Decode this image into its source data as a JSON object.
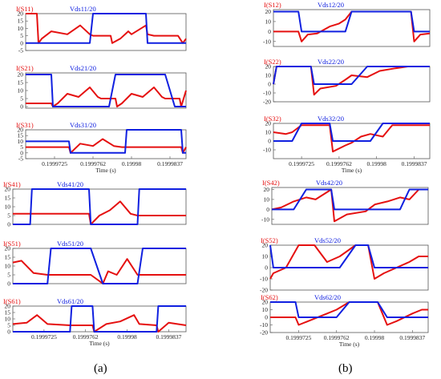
{
  "figure_labels": {
    "left": "(a)",
    "right": "(b)"
  },
  "chart_data": [
    {
      "type": "line",
      "group": "a",
      "xlabel": "",
      "x": [
        0,
        0.07,
        0.08,
        0.1,
        0.16,
        0.26,
        0.34,
        0.4,
        0.42,
        0.47,
        0.53,
        0.54,
        0.59,
        0.64,
        0.66,
        0.75,
        0.76,
        0.8,
        0.88,
        0.95,
        0.98,
        1
      ],
      "series": [
        {
          "name": "I(S11)",
          "values": [
            20,
            20,
            0,
            3,
            8,
            6,
            12,
            6,
            5,
            5,
            5,
            0,
            3,
            8,
            6,
            12,
            6,
            5,
            5,
            5,
            0,
            3
          ]
        },
        {
          "name": "Vds11/20",
          "values": [
            0,
            0,
            0,
            0,
            0,
            0,
            0,
            0,
            20,
            20,
            20,
            20,
            20,
            20,
            20,
            20,
            0,
            0,
            0,
            0,
            0,
            0
          ]
        }
      ],
      "xticks": [],
      "yticks": [
        -5,
        0,
        5,
        10,
        15,
        20
      ],
      "ylim": [
        -5,
        20
      ]
    },
    {
      "type": "line",
      "group": "a",
      "xlabel": "",
      "x": [
        0,
        0.16,
        0.17,
        0.2,
        0.26,
        0.33,
        0.4,
        0.45,
        0.47,
        0.52,
        0.56,
        0.57,
        0.6,
        0.66,
        0.73,
        0.8,
        0.85,
        0.87,
        0.93,
        0.96,
        0.97,
        1
      ],
      "series": [
        {
          "name": "I(S21)",
          "values": [
            2,
            2,
            0,
            2,
            8,
            6,
            12,
            6,
            5,
            5,
            5,
            0,
            2,
            8,
            6,
            12,
            6,
            5,
            5,
            5,
            0,
            10
          ]
        },
        {
          "name": "Vds21/20",
          "values": [
            20,
            20,
            0,
            0,
            0,
            0,
            0,
            0,
            0,
            0,
            20,
            20,
            20,
            20,
            20,
            20,
            20,
            20,
            0,
            0,
            0,
            0
          ]
        }
      ],
      "xticks": [],
      "yticks": [
        0,
        5,
        10,
        15,
        20
      ],
      "ylim": [
        -1,
        21
      ]
    },
    {
      "type": "line",
      "group": "a",
      "xlabel": "Time (s)",
      "x": [
        0,
        0.2,
        0.27,
        0.28,
        0.34,
        0.42,
        0.48,
        0.55,
        0.6,
        0.62,
        0.63,
        0.7,
        0.75,
        0.83,
        0.9,
        0.95,
        0.97,
        0.98,
        1
      ],
      "series": [
        {
          "name": "I(S31)",
          "values": [
            5,
            5,
            5,
            0,
            8,
            6,
            12,
            6,
            5,
            5,
            5,
            5,
            5,
            5,
            5,
            5,
            5,
            0,
            5
          ]
        },
        {
          "name": "Vds31/20",
          "values": [
            10,
            10,
            10,
            0,
            0,
            0,
            0,
            0,
            0,
            0,
            20,
            20,
            20,
            20,
            20,
            20,
            20,
            0,
            0
          ]
        }
      ],
      "xticks": [
        "0.1999725",
        "0.1999762",
        "0.19998",
        "0.1999837"
      ],
      "yticks": [
        -5,
        0,
        5,
        10,
        15,
        20
      ],
      "ylim": [
        -5,
        20
      ]
    },
    {
      "type": "line",
      "group": "a",
      "xlabel": "",
      "x": [
        0,
        0.05,
        0.1,
        0.11,
        0.3,
        0.44,
        0.45,
        0.5,
        0.56,
        0.62,
        0.68,
        0.72,
        0.73,
        0.78,
        0.9,
        1
      ],
      "series": [
        {
          "name": "I(S41)",
          "values": [
            6,
            6,
            6,
            6,
            6,
            6,
            0,
            5,
            8,
            13,
            6,
            5,
            5,
            5,
            5,
            5
          ]
        },
        {
          "name": "Vds41/20",
          "values": [
            0,
            0,
            0,
            20,
            20,
            20,
            0,
            0,
            0,
            0,
            0,
            0,
            20,
            20,
            20,
            20
          ]
        }
      ],
      "xticks": [],
      "yticks": [
        0,
        5,
        10,
        15,
        20
      ],
      "ylim": [
        0,
        20
      ]
    },
    {
      "type": "line",
      "group": "a",
      "xlabel": "",
      "x": [
        0,
        0.05,
        0.12,
        0.2,
        0.22,
        0.33,
        0.45,
        0.52,
        0.55,
        0.6,
        0.66,
        0.72,
        0.75,
        0.8,
        0.86,
        0.9,
        1
      ],
      "series": [
        {
          "name": "I(S51)",
          "values": [
            12,
            13,
            6,
            5,
            5,
            5,
            5,
            0,
            7,
            5,
            14,
            5,
            5,
            5,
            5,
            5,
            5
          ]
        },
        {
          "name": "Vds51/20",
          "values": [
            0,
            0,
            0,
            0,
            20,
            20,
            20,
            0,
            0,
            0,
            0,
            0,
            20,
            20,
            20,
            20,
            20
          ]
        }
      ],
      "xticks": [],
      "yticks": [
        0,
        5,
        10,
        15,
        20
      ],
      "ylim": [
        0,
        20
      ]
    },
    {
      "type": "line",
      "group": "a",
      "xlabel": "Time (s)",
      "x": [
        0,
        0.08,
        0.14,
        0.2,
        0.33,
        0.34,
        0.46,
        0.47,
        0.54,
        0.62,
        0.7,
        0.73,
        0.83,
        0.84,
        0.9,
        1
      ],
      "series": [
        {
          "name": "I(S61)",
          "values": [
            6,
            7,
            13,
            6,
            5,
            5,
            5,
            0,
            6,
            8,
            13,
            6,
            5,
            0,
            7,
            5
          ]
        },
        {
          "name": "Vds61/20",
          "values": [
            0,
            0,
            0,
            0,
            0,
            20,
            20,
            0,
            0,
            0,
            0,
            0,
            0,
            20,
            20,
            20
          ]
        }
      ],
      "xticks": [
        "0.1999725",
        "0.1999762",
        "0.19998",
        "0.1999837"
      ],
      "yticks": [
        0,
        5,
        10,
        15,
        20
      ],
      "ylim": [
        0,
        20
      ]
    },
    {
      "type": "line",
      "group": "b",
      "xlabel": "",
      "x": [
        0,
        0.16,
        0.18,
        0.22,
        0.28,
        0.36,
        0.42,
        0.46,
        0.5,
        0.64,
        0.66,
        0.7,
        0.8,
        0.88,
        0.9,
        0.94,
        1
      ],
      "series": [
        {
          "name": "I(S12)",
          "values": [
            0,
            0,
            -10,
            -3,
            -2,
            5,
            8,
            12,
            20,
            20,
            20,
            20,
            20,
            20,
            -10,
            -3,
            -2
          ]
        },
        {
          "name": "Vds12/20",
          "values": [
            20,
            20,
            0,
            0,
            0,
            0,
            0,
            0,
            20,
            20,
            20,
            20,
            20,
            20,
            0,
            0,
            0
          ]
        }
      ],
      "xticks": [],
      "yticks": [
        -10,
        0,
        10,
        20
      ],
      "ylim": [
        -15,
        22
      ]
    },
    {
      "type": "line",
      "group": "b",
      "xlabel": "",
      "x": [
        0,
        0.02,
        0.24,
        0.26,
        0.3,
        0.4,
        0.46,
        0.5,
        0.6,
        0.68,
        0.78,
        0.86,
        0.92,
        1
      ],
      "series": [
        {
          "name": "I(S22)",
          "values": [
            0,
            20,
            20,
            -12,
            -5,
            -2,
            5,
            10,
            8,
            15,
            18,
            20,
            20,
            20
          ]
        },
        {
          "name": "Vds22/20",
          "values": [
            0,
            20,
            20,
            0,
            0,
            0,
            0,
            0,
            20,
            20,
            20,
            20,
            20,
            20
          ]
        }
      ],
      "xticks": [],
      "yticks": [
        -20,
        -10,
        0,
        10,
        20
      ],
      "ylim": [
        -20,
        20
      ]
    },
    {
      "type": "line",
      "group": "b",
      "xlabel": "Time (s)",
      "x": [
        0,
        0.08,
        0.12,
        0.18,
        0.36,
        0.38,
        0.46,
        0.5,
        0.56,
        0.62,
        0.7,
        0.76,
        0.82,
        0.9,
        1
      ],
      "series": [
        {
          "name": "I(S32)",
          "values": [
            10,
            8,
            10,
            18,
            18,
            -12,
            -5,
            -2,
            5,
            8,
            5,
            18,
            18,
            18,
            18
          ]
        },
        {
          "name": "Vds32/20",
          "values": [
            0,
            0,
            0,
            20,
            20,
            0,
            0,
            0,
            0,
            0,
            20,
            20,
            20,
            20,
            20
          ]
        }
      ],
      "xticks": [
        "0.1999725",
        "0.1999762",
        "0.19998",
        "0.1999837"
      ],
      "yticks": [
        -10,
        0,
        10,
        20
      ],
      "ylim": [
        -20,
        20
      ]
    },
    {
      "type": "line",
      "group": "b",
      "xlabel": "",
      "x": [
        0,
        0.06,
        0.14,
        0.22,
        0.28,
        0.38,
        0.4,
        0.48,
        0.6,
        0.66,
        0.74,
        0.82,
        0.88,
        0.94,
        1
      ],
      "series": [
        {
          "name": "I(S42)",
          "values": [
            0,
            2,
            8,
            12,
            10,
            20,
            -12,
            -5,
            -2,
            5,
            8,
            12,
            10,
            20,
            20
          ]
        },
        {
          "name": "Vds42/20",
          "values": [
            0,
            0,
            0,
            20,
            20,
            20,
            0,
            0,
            0,
            0,
            0,
            0,
            20,
            20,
            20
          ]
        }
      ],
      "xticks": [],
      "yticks": [
        -10,
        0,
        10,
        20
      ],
      "ylim": [
        -15,
        22
      ]
    },
    {
      "type": "line",
      "group": "b",
      "xlabel": "",
      "x": [
        0,
        0.02,
        0.1,
        0.18,
        0.28,
        0.36,
        0.44,
        0.54,
        0.62,
        0.66,
        0.72,
        0.8,
        0.88,
        0.94,
        1
      ],
      "series": [
        {
          "name": "I(S52)",
          "values": [
            -10,
            -5,
            0,
            20,
            20,
            5,
            10,
            20,
            20,
            -10,
            -5,
            0,
            5,
            10,
            10
          ]
        },
        {
          "name": "Vds52/20",
          "values": [
            20,
            0,
            0,
            0,
            0,
            0,
            0,
            20,
            20,
            0,
            0,
            0,
            0,
            0,
            0
          ]
        }
      ],
      "xticks": [],
      "yticks": [
        -20,
        -10,
        0,
        10,
        20
      ],
      "ylim": [
        -20,
        20
      ]
    },
    {
      "type": "line",
      "group": "b",
      "xlabel": "Time (s)",
      "x": [
        0,
        0.16,
        0.18,
        0.24,
        0.36,
        0.42,
        0.5,
        0.6,
        0.68,
        0.74,
        0.8,
        0.9,
        0.96,
        1
      ],
      "series": [
        {
          "name": "I(S62)",
          "values": [
            0,
            0,
            -10,
            -5,
            5,
            10,
            20,
            20,
            20,
            -10,
            -5,
            5,
            10,
            10
          ]
        },
        {
          "name": "Vds62/20",
          "values": [
            20,
            20,
            0,
            0,
            0,
            0,
            20,
            20,
            20,
            0,
            0,
            0,
            0,
            0
          ]
        }
      ],
      "xticks": [
        "0.1999725",
        "0.1999762",
        "0.19998",
        "0.1999837"
      ],
      "yticks": [
        -20,
        -10,
        0,
        10,
        20
      ],
      "ylim": [
        -20,
        20
      ]
    }
  ]
}
